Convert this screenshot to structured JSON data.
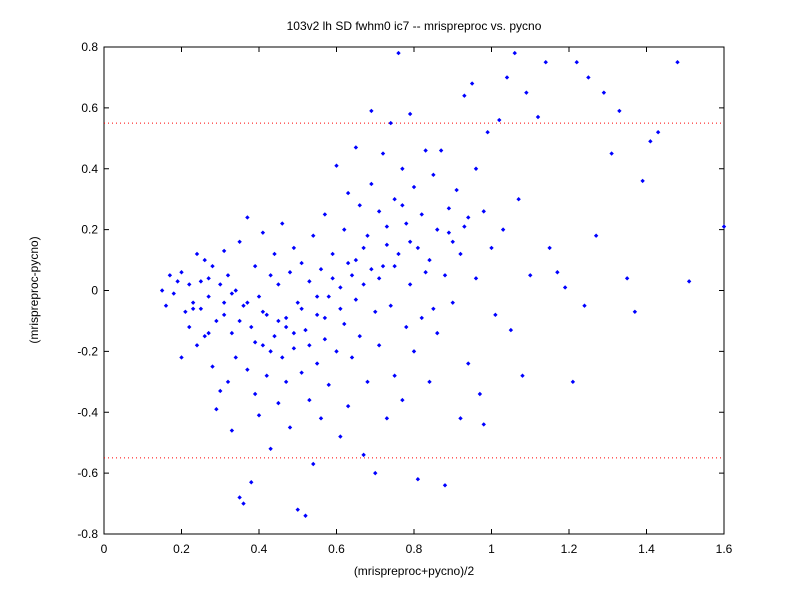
{
  "chart_data": {
    "type": "scatter",
    "title": "103v2 lh SD fwhm0 ic7 -- mrispreproc vs. pycno",
    "xlabel": "(mrispreproc+pycno)/2",
    "ylabel": "(mrispreproc-pycno)",
    "xlim": [
      0,
      1.6
    ],
    "ylim": [
      -0.8,
      0.8
    ],
    "xticks": [
      0,
      0.2,
      0.4,
      0.6,
      0.8,
      1,
      1.2,
      1.4,
      1.6
    ],
    "yticks": [
      -0.8,
      -0.6,
      -0.4,
      -0.2,
      0,
      0.2,
      0.4,
      0.6,
      0.8
    ],
    "xtick_labels": [
      "0",
      "0.2",
      "0.4",
      "0.6",
      "0.8",
      "1",
      "1.2",
      "1.4",
      "1.6"
    ],
    "ytick_labels": [
      "-0.8",
      "-0.6",
      "-0.4",
      "-0.2",
      "0",
      "0.2",
      "0.4",
      "0.6",
      "0.8"
    ],
    "grid": false,
    "point_color": "#0000ff",
    "threshold_color": "#ff0000",
    "threshold_lines": [
      0.55,
      -0.55
    ],
    "points": [
      [
        0.15,
        0.0
      ],
      [
        0.16,
        -0.05
      ],
      [
        0.17,
        0.05
      ],
      [
        0.18,
        -0.01
      ],
      [
        0.19,
        0.03
      ],
      [
        0.2,
        -0.22
      ],
      [
        0.2,
        0.06
      ],
      [
        0.21,
        -0.07
      ],
      [
        0.22,
        0.02
      ],
      [
        0.22,
        -0.12
      ],
      [
        0.23,
        -0.04
      ],
      [
        0.24,
        0.12
      ],
      [
        0.24,
        -0.18
      ],
      [
        0.25,
        0.03
      ],
      [
        0.25,
        -0.06
      ],
      [
        0.26,
        0.1
      ],
      [
        0.26,
        -0.15
      ],
      [
        0.27,
        0.04
      ],
      [
        0.27,
        -0.02
      ],
      [
        0.28,
        -0.25
      ],
      [
        0.28,
        0.08
      ],
      [
        0.29,
        -0.39
      ],
      [
        0.29,
        -0.1
      ],
      [
        0.3,
        0.02
      ],
      [
        0.3,
        -0.33
      ],
      [
        0.31,
        0.13
      ],
      [
        0.31,
        -0.08
      ],
      [
        0.32,
        -0.3
      ],
      [
        0.32,
        0.05
      ],
      [
        0.33,
        -0.46
      ],
      [
        0.33,
        -0.14
      ],
      [
        0.34,
        0.0
      ],
      [
        0.34,
        -0.22
      ],
      [
        0.35,
        -0.68
      ],
      [
        0.35,
        0.16
      ],
      [
        0.36,
        -0.7
      ],
      [
        0.36,
        -0.05
      ],
      [
        0.37,
        -0.26
      ],
      [
        0.37,
        0.24
      ],
      [
        0.38,
        -0.63
      ],
      [
        0.38,
        -0.12
      ],
      [
        0.39,
        0.08
      ],
      [
        0.39,
        -0.34
      ],
      [
        0.4,
        -0.02
      ],
      [
        0.4,
        -0.41
      ],
      [
        0.41,
        0.19
      ],
      [
        0.41,
        -0.18
      ],
      [
        0.42,
        -0.08
      ],
      [
        0.42,
        -0.28
      ],
      [
        0.43,
        0.05
      ],
      [
        0.43,
        -0.52
      ],
      [
        0.44,
        -0.15
      ],
      [
        0.44,
        0.12
      ],
      [
        0.45,
        -0.37
      ],
      [
        0.45,
        0.02
      ],
      [
        0.46,
        -0.22
      ],
      [
        0.46,
        0.22
      ],
      [
        0.47,
        -0.09
      ],
      [
        0.47,
        -0.3
      ],
      [
        0.48,
        0.06
      ],
      [
        0.48,
        -0.45
      ],
      [
        0.49,
        -0.19
      ],
      [
        0.49,
        0.14
      ],
      [
        0.5,
        -0.72
      ],
      [
        0.5,
        -0.04
      ],
      [
        0.51,
        -0.27
      ],
      [
        0.51,
        0.09
      ],
      [
        0.52,
        -0.74
      ],
      [
        0.52,
        -0.13
      ],
      [
        0.53,
        0.03
      ],
      [
        0.53,
        -0.36
      ],
      [
        0.54,
        -0.57
      ],
      [
        0.54,
        0.18
      ],
      [
        0.55,
        -0.08
      ],
      [
        0.55,
        -0.24
      ],
      [
        0.56,
        0.07
      ],
      [
        0.56,
        -0.42
      ],
      [
        0.57,
        -0.16
      ],
      [
        0.57,
        0.25
      ],
      [
        0.58,
        -0.02
      ],
      [
        0.58,
        -0.31
      ],
      [
        0.59,
        0.12
      ],
      [
        0.6,
        -0.2
      ],
      [
        0.6,
        0.41
      ],
      [
        0.61,
        -0.06
      ],
      [
        0.61,
        -0.48
      ],
      [
        0.62,
        0.2
      ],
      [
        0.62,
        -0.11
      ],
      [
        0.63,
        0.32
      ],
      [
        0.63,
        -0.38
      ],
      [
        0.64,
        0.05
      ],
      [
        0.64,
        -0.22
      ],
      [
        0.65,
        0.47
      ],
      [
        0.65,
        0.1
      ],
      [
        0.66,
        -0.15
      ],
      [
        0.66,
        0.28
      ],
      [
        0.67,
        -0.54
      ],
      [
        0.67,
        0.02
      ],
      [
        0.68,
        0.18
      ],
      [
        0.68,
        -0.3
      ],
      [
        0.69,
        0.59
      ],
      [
        0.69,
        0.35
      ],
      [
        0.7,
        -0.07
      ],
      [
        0.7,
        -0.6
      ],
      [
        0.71,
        0.26
      ],
      [
        0.71,
        -0.18
      ],
      [
        0.72,
        0.45
      ],
      [
        0.72,
        0.08
      ],
      [
        0.73,
        -0.42
      ],
      [
        0.73,
        0.15
      ],
      [
        0.74,
        0.55
      ],
      [
        0.74,
        -0.05
      ],
      [
        0.75,
        0.3
      ],
      [
        0.75,
        -0.28
      ],
      [
        0.76,
        0.78
      ],
      [
        0.76,
        0.12
      ],
      [
        0.77,
        -0.36
      ],
      [
        0.77,
        0.4
      ],
      [
        0.78,
        0.22
      ],
      [
        0.78,
        -0.12
      ],
      [
        0.79,
        0.58
      ],
      [
        0.79,
        0.02
      ],
      [
        0.8,
        0.34
      ],
      [
        0.8,
        -0.2
      ],
      [
        0.81,
        -0.62
      ],
      [
        0.82,
        0.25
      ],
      [
        0.82,
        -0.09
      ],
      [
        0.83,
        0.46
      ],
      [
        0.84,
        0.1
      ],
      [
        0.84,
        -0.3
      ],
      [
        0.85,
        0.38
      ],
      [
        0.86,
        0.2
      ],
      [
        0.86,
        -0.14
      ],
      [
        0.87,
        0.46
      ],
      [
        0.88,
        -0.64
      ],
      [
        0.88,
        0.05
      ],
      [
        0.89,
        0.27
      ],
      [
        0.9,
        -0.04
      ],
      [
        0.9,
        0.16
      ],
      [
        0.91,
        0.33
      ],
      [
        0.92,
        -0.42
      ],
      [
        0.92,
        0.12
      ],
      [
        0.93,
        0.64
      ],
      [
        0.94,
        -0.24
      ],
      [
        0.94,
        0.24
      ],
      [
        0.95,
        0.68
      ],
      [
        0.96,
        0.04
      ],
      [
        0.96,
        0.4
      ],
      [
        0.97,
        -0.34
      ],
      [
        0.98,
        0.26
      ],
      [
        0.98,
        -0.44
      ],
      [
        0.99,
        0.52
      ],
      [
        1.0,
        0.14
      ],
      [
        1.01,
        -0.08
      ],
      [
        1.02,
        0.56
      ],
      [
        1.03,
        0.2
      ],
      [
        1.04,
        0.7
      ],
      [
        1.05,
        -0.13
      ],
      [
        1.06,
        0.78
      ],
      [
        1.07,
        0.3
      ],
      [
        1.08,
        -0.28
      ],
      [
        1.09,
        0.65
      ],
      [
        1.1,
        0.05
      ],
      [
        1.12,
        0.57
      ],
      [
        1.14,
        0.75
      ],
      [
        1.15,
        0.14
      ],
      [
        1.17,
        0.06
      ],
      [
        1.19,
        0.01
      ],
      [
        1.21,
        -0.3
      ],
      [
        1.22,
        0.75
      ],
      [
        1.24,
        -0.05
      ],
      [
        1.25,
        0.7
      ],
      [
        1.27,
        0.18
      ],
      [
        1.29,
        0.65
      ],
      [
        1.31,
        0.45
      ],
      [
        1.33,
        0.59
      ],
      [
        1.35,
        0.04
      ],
      [
        1.37,
        -0.07
      ],
      [
        1.39,
        0.36
      ],
      [
        1.41,
        0.49
      ],
      [
        1.43,
        0.52
      ],
      [
        1.48,
        0.75
      ],
      [
        1.51,
        0.03
      ],
      [
        1.6,
        0.21
      ],
      [
        0.23,
        -0.06
      ],
      [
        0.27,
        -0.14
      ],
      [
        0.31,
        -0.04
      ],
      [
        0.35,
        -0.1
      ],
      [
        0.39,
        -0.17
      ],
      [
        0.43,
        -0.2
      ],
      [
        0.47,
        -0.12
      ],
      [
        0.51,
        -0.06
      ],
      [
        0.55,
        -0.02
      ],
      [
        0.59,
        0.04
      ],
      [
        0.63,
        0.09
      ],
      [
        0.67,
        0.14
      ],
      [
        0.71,
        0.04
      ],
      [
        0.75,
        0.08
      ],
      [
        0.79,
        0.16
      ],
      [
        0.83,
        0.06
      ],
      [
        0.33,
        -0.01
      ],
      [
        0.37,
        -0.04
      ],
      [
        0.41,
        -0.07
      ],
      [
        0.45,
        -0.1
      ],
      [
        0.49,
        -0.14
      ],
      [
        0.53,
        -0.18
      ],
      [
        0.57,
        -0.09
      ],
      [
        0.61,
        0.01
      ],
      [
        0.65,
        -0.03
      ],
      [
        0.69,
        0.07
      ],
      [
        0.73,
        0.21
      ],
      [
        0.77,
        0.28
      ],
      [
        0.81,
        0.14
      ],
      [
        0.85,
        -0.06
      ],
      [
        0.89,
        0.19
      ],
      [
        0.93,
        0.21
      ]
    ]
  }
}
